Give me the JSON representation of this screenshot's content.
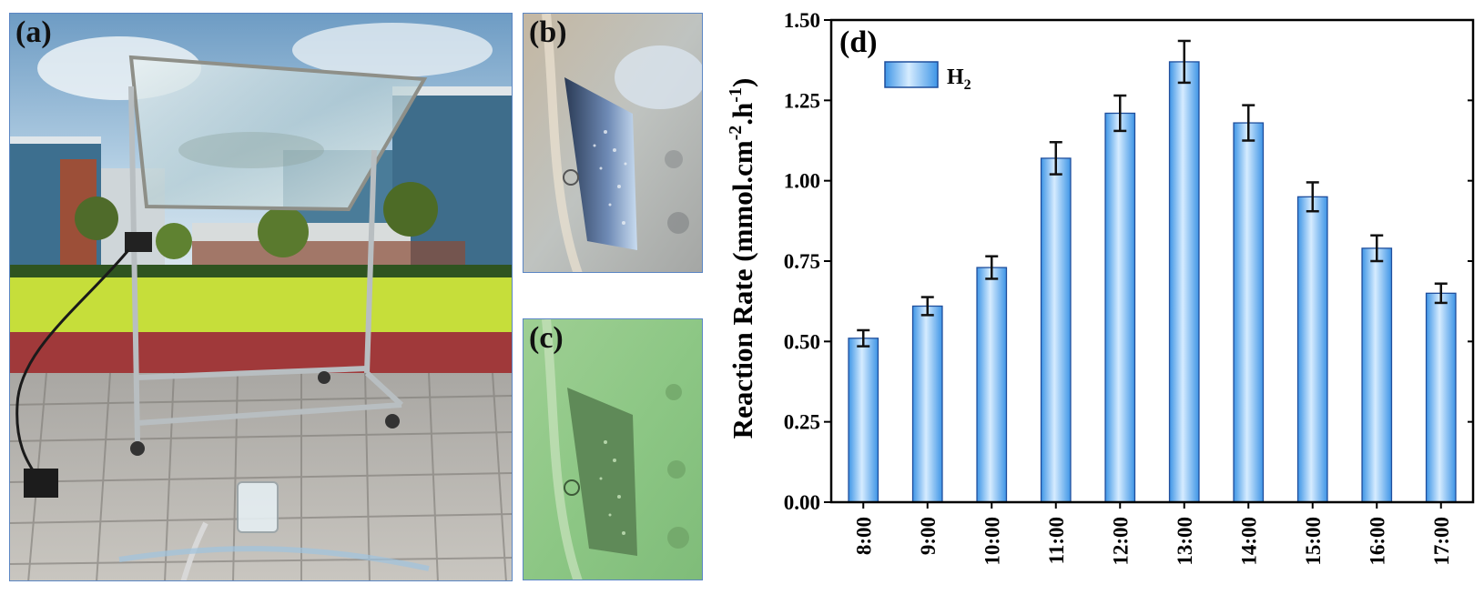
{
  "panels": {
    "a": {
      "label": "(a)"
    },
    "b": {
      "label": "(b)"
    },
    "c": {
      "label": "(c)"
    }
  },
  "colors": {
    "frame": "#5b86c4",
    "bar_edge": "#1f4e9c",
    "bar_light": "#d6ecff",
    "bar_dark": "#3e95e6",
    "error_bar": "#111111"
  },
  "chart_data": {
    "type": "bar",
    "panel_label": "(d)",
    "categories": [
      "8:00",
      "9:00",
      "10:00",
      "11:00",
      "12:00",
      "13:00",
      "14:00",
      "15:00",
      "16:00",
      "17:00"
    ],
    "series": [
      {
        "name": "H2",
        "values": [
          0.51,
          0.61,
          0.73,
          1.07,
          1.21,
          1.37,
          1.18,
          0.95,
          0.79,
          0.65
        ],
        "errors": [
          0.025,
          0.028,
          0.035,
          0.05,
          0.055,
          0.065,
          0.055,
          0.045,
          0.04,
          0.03
        ]
      }
    ],
    "legend": {
      "main": "H",
      "sub": "2",
      "position": "top-left"
    },
    "ylabel": {
      "main": "Reaction Rate (mmol.cm",
      "sup1": "-2",
      "mid": ".h",
      "sup2": "-1",
      "end": ")"
    },
    "ylim": [
      0,
      1.5
    ],
    "yticks": [
      "0.00",
      "0.25",
      "0.50",
      "0.75",
      "1.00",
      "1.25",
      "1.50"
    ],
    "grid": false
  }
}
